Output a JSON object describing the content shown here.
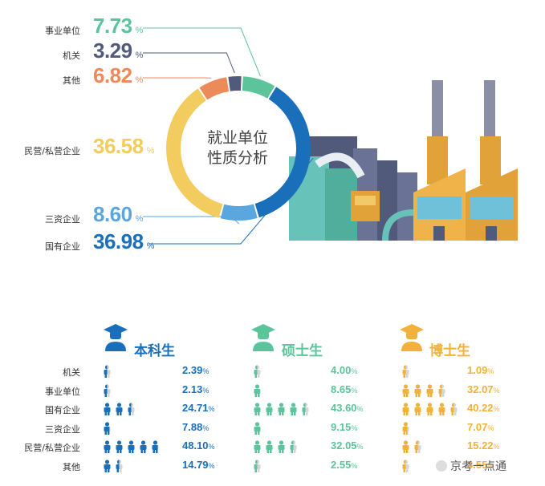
{
  "chart_data": [
    {
      "type": "pie",
      "title": "就业单位\n性质分析",
      "title_lines": [
        "就业单位",
        "性质分析"
      ],
      "unit": "%",
      "slices": [
        {
          "label": "事业单位",
          "value": 7.73,
          "display": "7.73",
          "color": "#5cc49a"
        },
        {
          "label": "机关",
          "value": 3.29,
          "display": "3.29",
          "color": "#525a7c"
        },
        {
          "label": "其他",
          "value": 6.82,
          "display": "6.82",
          "color": "#ec8a5a"
        },
        {
          "label": "民营/私营企业",
          "value": 36.58,
          "display": "36.58",
          "color": "#f2cc5e"
        },
        {
          "label": "三资企业",
          "value": 8.6,
          "display": "8.60",
          "color": "#5aa6df"
        },
        {
          "label": "国有企业",
          "value": 36.98,
          "display": "36.98",
          "color": "#1a6fba"
        }
      ]
    },
    {
      "type": "table",
      "unit": "%",
      "groups": [
        {
          "name": "本科生",
          "color": "#1a6fba",
          "rows": [
            {
              "label": "机关",
              "value": 2.39,
              "display": "2.39"
            },
            {
              "label": "事业单位",
              "value": 2.13,
              "display": "2.13"
            },
            {
              "label": "国有企业",
              "value": 24.71,
              "display": "24.71"
            },
            {
              "label": "三资企业",
              "value": 7.88,
              "display": "7.88"
            },
            {
              "label": "民营/私营企业",
              "value": 48.1,
              "display": "48.10"
            },
            {
              "label": "其他",
              "value": 14.79,
              "display": "14.79"
            }
          ]
        },
        {
          "name": "硕士生",
          "color": "#5cc49a",
          "rows": [
            {
              "label": "机关",
              "value": 4.0,
              "display": "4.00"
            },
            {
              "label": "事业单位",
              "value": 8.65,
              "display": "8.65"
            },
            {
              "label": "国有企业",
              "value": 43.6,
              "display": "43.60"
            },
            {
              "label": "三资企业",
              "value": 9.15,
              "display": "9.15"
            },
            {
              "label": "民营/私营企业",
              "value": 32.05,
              "display": "32.05"
            },
            {
              "label": "其他",
              "value": 2.55,
              "display": "2.55"
            }
          ]
        },
        {
          "name": "博士生",
          "color": "#f2b13a",
          "rows": [
            {
              "label": "机关",
              "value": 1.09,
              "display": "1.09"
            },
            {
              "label": "事业单位",
              "value": 32.07,
              "display": "32.07"
            },
            {
              "label": "国有企业",
              "value": 40.22,
              "display": "40.22"
            },
            {
              "label": "三资企业",
              "value": 7.07,
              "display": "7.07"
            },
            {
              "label": "民营/私营企业",
              "value": 15.22,
              "display": "15.22"
            },
            {
              "label": "其他",
              "value": 3.55,
              "display": "3.55"
            }
          ]
        }
      ],
      "icon_scale_percent_per_icon": 10
    }
  ],
  "watermark": "京考一点通",
  "watermark_icon": "wechat-icon",
  "unit_symbol": "%"
}
